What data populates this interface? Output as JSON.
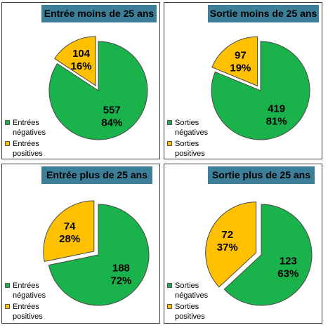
{
  "colors": {
    "negative": "#19b24b",
    "positive": "#ffc000",
    "title_bg": "#3d7f99",
    "border": "#3c3c3c"
  },
  "chart_data": [
    {
      "type": "pie",
      "title": "Entrée moins de 25 ans",
      "slices": [
        {
          "label": "Entrées négatives",
          "value": 557,
          "percent": "84%",
          "color": "#19b24b"
        },
        {
          "label": "Entrées positives",
          "value": 104,
          "percent": "16%",
          "color": "#ffc000",
          "exploded": true
        }
      ],
      "legend": {
        "position": "left",
        "items": [
          [
            "Entrées",
            "négatives"
          ],
          [
            "Entrées",
            "positives"
          ]
        ]
      }
    },
    {
      "type": "pie",
      "title": "Sortie moins de 25 ans",
      "slices": [
        {
          "label": "Sorties négatives",
          "value": 419,
          "percent": "81%",
          "color": "#19b24b"
        },
        {
          "label": "Sorties positives",
          "value": 97,
          "percent": "19%",
          "color": "#ffc000",
          "exploded": true
        }
      ],
      "legend": {
        "position": "left",
        "items": [
          [
            "Sorties",
            "négatives"
          ],
          [
            "Sorties",
            "positives"
          ]
        ]
      }
    },
    {
      "type": "pie",
      "title": "Entrée plus de 25 ans",
      "slices": [
        {
          "label": "Entrées négatives",
          "value": 188,
          "percent": "72%",
          "color": "#19b24b"
        },
        {
          "label": "Entrées positives",
          "value": 74,
          "percent": "28%",
          "color": "#ffc000",
          "exploded": true
        }
      ],
      "legend": {
        "position": "left",
        "items": [
          [
            "Entrées",
            "négatives"
          ],
          [
            "Entrées",
            "positives"
          ]
        ]
      }
    },
    {
      "type": "pie",
      "title": "Sortie plus  de 25 ans",
      "slices": [
        {
          "label": "Sorties négatives",
          "value": 123,
          "percent": "63%",
          "color": "#19b24b"
        },
        {
          "label": "Sorties positives",
          "value": 72,
          "percent": "37%",
          "color": "#ffc000",
          "exploded": true
        }
      ],
      "legend": {
        "position": "left",
        "items": [
          [
            "Sorties",
            "négatives"
          ],
          [
            "Sorties",
            "positives"
          ]
        ]
      }
    }
  ]
}
